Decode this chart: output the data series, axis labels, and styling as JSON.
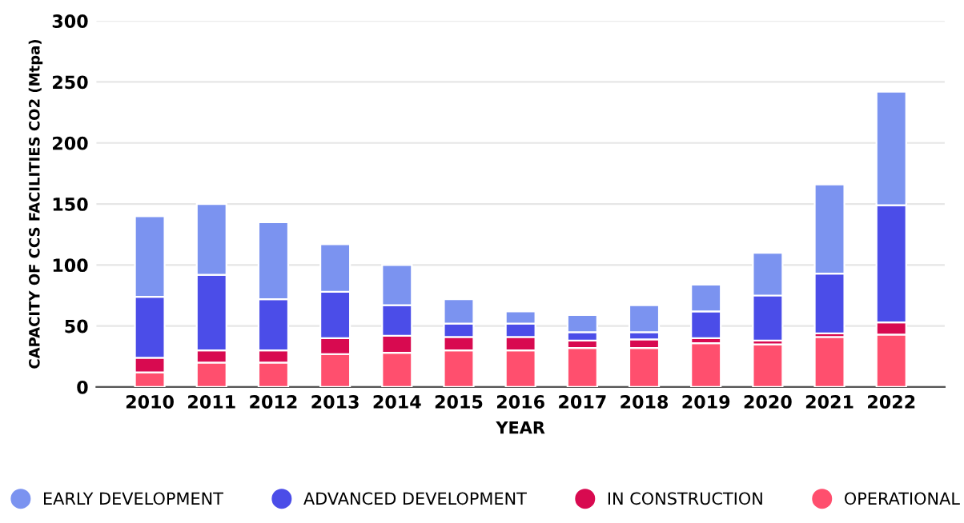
{
  "chart_data": {
    "type": "bar",
    "stacked": true,
    "xlabel": "YEAR",
    "ylabel": "CAPACITY OF CCS FACILITIES CO2 (Mtpa)",
    "categories": [
      "2010",
      "2011",
      "2012",
      "2013",
      "2014",
      "2015",
      "2016",
      "2017",
      "2018",
      "2019",
      "2020",
      "2021",
      "2022"
    ],
    "series": [
      {
        "name": "OPERATIONAL",
        "color": "#ff4f6e",
        "values": [
          12,
          20,
          20,
          27,
          28,
          30,
          30,
          32,
          32,
          36,
          35,
          41,
          43
        ]
      },
      {
        "name": "IN CONSTRUCTION",
        "color": "#d80a50",
        "values": [
          12,
          10,
          10,
          13,
          14,
          11,
          11,
          6,
          7,
          4,
          3,
          3,
          10
        ]
      },
      {
        "name": "ADVANCED DEVELOPMENT",
        "color": "#4b4de8",
        "values": [
          50,
          62,
          42,
          38,
          25,
          11,
          11,
          7,
          6,
          22,
          37,
          49,
          96
        ]
      },
      {
        "name": "EARLY DEVELOPMENT",
        "color": "#7b93f0",
        "values": [
          66,
          58,
          63,
          39,
          33,
          20,
          10,
          14,
          22,
          22,
          35,
          73,
          93
        ]
      }
    ],
    "ylim": [
      0,
      300
    ],
    "yticks": [
      0,
      50,
      100,
      150,
      200,
      250,
      300
    ],
    "grid": "y",
    "legend": "bottom"
  }
}
